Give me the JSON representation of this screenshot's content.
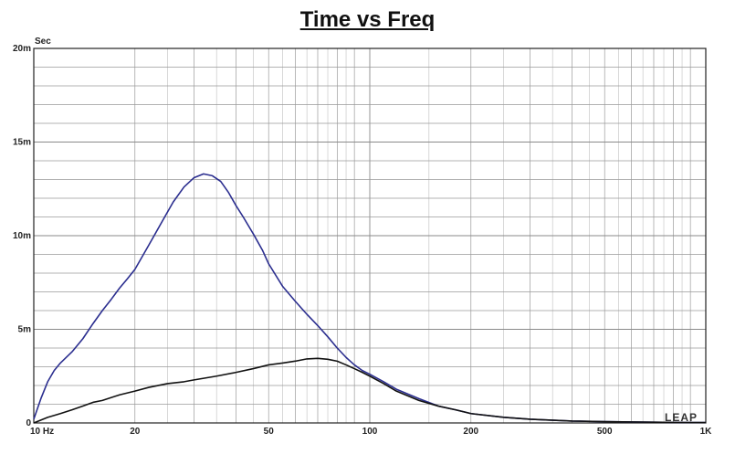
{
  "chart_data": {
    "type": "line",
    "title": "Time vs Freq",
    "ylabel": "Sec",
    "xlabel": "",
    "xscale": "log",
    "xlim": [
      10,
      1000
    ],
    "ylim": [
      0,
      0.02
    ],
    "grid": true,
    "x_ticks": [
      {
        "value": 10,
        "label": "10  Hz"
      },
      {
        "value": 20,
        "label": "20"
      },
      {
        "value": 50,
        "label": "50"
      },
      {
        "value": 100,
        "label": "100"
      },
      {
        "value": 200,
        "label": "200"
      },
      {
        "value": 500,
        "label": "500"
      },
      {
        "value": 1000,
        "label": "1K"
      }
    ],
    "y_ticks": [
      {
        "value": 0,
        "label": "0"
      },
      {
        "value": 0.005,
        "label": "5m"
      },
      {
        "value": 0.01,
        "label": "10m"
      },
      {
        "value": 0.015,
        "label": "15m"
      },
      {
        "value": 0.02,
        "label": "20m"
      }
    ],
    "series": [
      {
        "color": "#2b2e8f",
        "x": [
          10,
          10.5,
          11,
          11.5,
          12,
          13,
          14,
          15,
          16,
          17,
          18,
          19,
          20,
          22,
          24,
          26,
          28,
          30,
          32,
          34,
          36,
          38,
          40,
          42,
          45,
          48,
          50,
          55,
          60,
          65,
          70,
          75,
          80,
          85,
          90,
          95,
          100,
          110,
          120,
          140,
          160,
          180,
          200,
          250,
          300,
          400,
          500,
          600,
          700,
          800,
          900,
          1000
        ],
        "y": [
          0.0002,
          0.0013,
          0.0022,
          0.0028,
          0.0032,
          0.0038,
          0.0045,
          0.0053,
          0.006,
          0.0066,
          0.0072,
          0.0077,
          0.0082,
          0.0095,
          0.0107,
          0.0118,
          0.0126,
          0.0131,
          0.0133,
          0.0132,
          0.0129,
          0.0123,
          0.0116,
          0.011,
          0.0101,
          0.0092,
          0.0085,
          0.0073,
          0.0065,
          0.0058,
          0.0052,
          0.0046,
          0.004,
          0.0035,
          0.0031,
          0.0028,
          0.0026,
          0.0022,
          0.0018,
          0.0013,
          0.0009,
          0.0007,
          0.0005,
          0.0003,
          0.0002,
          0.0001,
          7e-05,
          5e-05,
          4e-05,
          3e-05,
          2e-05,
          2e-05
        ]
      },
      {
        "color": "#111111",
        "x": [
          10,
          11,
          12,
          13,
          14,
          15,
          16,
          18,
          20,
          22,
          25,
          28,
          30,
          35,
          40,
          45,
          50,
          55,
          60,
          65,
          70,
          75,
          80,
          85,
          90,
          95,
          100,
          110,
          120,
          140,
          160,
          180,
          200,
          250,
          300,
          400,
          500,
          600,
          700,
          800,
          900,
          1000
        ],
        "y": [
          0.0,
          0.0003,
          0.0005,
          0.0007,
          0.0009,
          0.0011,
          0.0012,
          0.0015,
          0.0017,
          0.0019,
          0.0021,
          0.0022,
          0.0023,
          0.0025,
          0.0027,
          0.0029,
          0.0031,
          0.0032,
          0.0033,
          0.00342,
          0.00345,
          0.0034,
          0.0033,
          0.0031,
          0.0029,
          0.0027,
          0.0025,
          0.0021,
          0.0017,
          0.0012,
          0.0009,
          0.0007,
          0.0005,
          0.0003,
          0.0002,
          0.0001,
          7e-05,
          5e-05,
          4e-05,
          3e-05,
          2e-05,
          2e-05
        ]
      }
    ],
    "watermark": "LEAP"
  }
}
